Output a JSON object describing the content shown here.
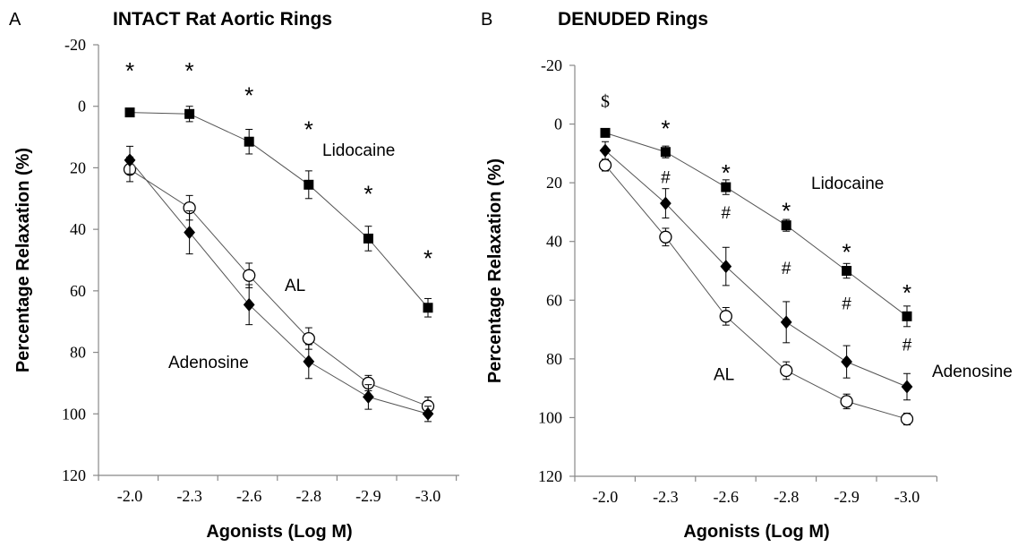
{
  "chart_data": [
    {
      "panel_letter": "A",
      "type": "line",
      "title": "INTACT Rat Aortic Rings",
      "xlabel": "Agonists (Log M)",
      "ylabel": "Percentage Relaxation (%)",
      "categories": [
        "-2.0",
        "-2.3",
        "-2.6",
        "-2.8",
        "-2.9",
        "-3.0"
      ],
      "y_ticks": [
        -20,
        0,
        20,
        40,
        60,
        80,
        100,
        120
      ],
      "ylim": [
        -20,
        120
      ],
      "y_inverted": true,
      "series": [
        {
          "name": "Lidocaine",
          "marker": "filled-square",
          "values": [
            2,
            2.5,
            11.5,
            25.5,
            43,
            65.5
          ],
          "errors": [
            1,
            2.5,
            4,
            4.5,
            4,
            3
          ]
        },
        {
          "name": "AL",
          "marker": "open-circle",
          "values": [
            20.5,
            33,
            55,
            75.5,
            90,
            97.5
          ],
          "errors": [
            4,
            4,
            4,
            3.5,
            2.5,
            3
          ]
        },
        {
          "name": "Adenosine",
          "marker": "filled-diamond",
          "values": [
            17.5,
            41,
            64.5,
            83,
            94.5,
            100
          ],
          "errors": [
            4.5,
            7,
            6.5,
            5.5,
            4,
            2.5
          ]
        }
      ],
      "annotations": [
        {
          "text": "*",
          "category": "-2.0",
          "y": -13
        },
        {
          "text": "*",
          "category": "-2.3",
          "y": -13
        },
        {
          "text": "*",
          "category": "-2.6",
          "y": -5
        },
        {
          "text": "*",
          "category": "-2.8",
          "y": 6
        },
        {
          "text": "*",
          "category": "-2.9",
          "y": 27
        },
        {
          "text": "*",
          "category": "-3.0",
          "y": 48
        }
      ]
    },
    {
      "panel_letter": "B",
      "type": "line",
      "title": "DENUDED Rings",
      "xlabel": "Agonists (Log M)",
      "ylabel": "Percentage Relaxation (%)",
      "categories": [
        "-2.0",
        "-2.3",
        "-2.6",
        "-2.8",
        "-2.9",
        "-3.0"
      ],
      "y_ticks": [
        -20,
        0,
        20,
        40,
        60,
        80,
        100,
        120
      ],
      "ylim": [
        -20,
        120
      ],
      "y_inverted": true,
      "series": [
        {
          "name": "Lidocaine",
          "marker": "filled-square",
          "values": [
            3,
            9.5,
            21.5,
            34.5,
            50,
            65.5
          ],
          "errors": [
            1,
            2,
            2.5,
            2,
            2.5,
            3.5
          ]
        },
        {
          "name": "Adenosine",
          "marker": "filled-diamond",
          "values": [
            9,
            27,
            48.5,
            67.5,
            81,
            89.5
          ],
          "errors": [
            3,
            5,
            6.5,
            7,
            5.5,
            4.5
          ]
        },
        {
          "name": "AL",
          "marker": "open-circle",
          "values": [
            14,
            38.5,
            65.5,
            84,
            94.5,
            100.5
          ],
          "errors": [
            2,
            3,
            3,
            3,
            2.5,
            2
          ]
        }
      ],
      "annotations": [
        {
          "text": "$",
          "category": "-2.0",
          "y": -8
        },
        {
          "text": "*",
          "category": "-2.3",
          "y": 0
        },
        {
          "text": "*",
          "category": "-2.6",
          "y": 15
        },
        {
          "text": "*",
          "category": "-2.8",
          "y": 28
        },
        {
          "text": "*",
          "category": "-2.9",
          "y": 42
        },
        {
          "text": "*",
          "category": "-3.0",
          "y": 56
        },
        {
          "text": "#",
          "category": "-2.3",
          "y": 18
        },
        {
          "text": "#",
          "category": "-2.6",
          "y": 30
        },
        {
          "text": "#",
          "category": "-2.8",
          "y": 49
        },
        {
          "text": "#",
          "category": "-2.9",
          "y": 61
        },
        {
          "text": "#",
          "category": "-3.0",
          "y": 75
        }
      ]
    }
  ]
}
